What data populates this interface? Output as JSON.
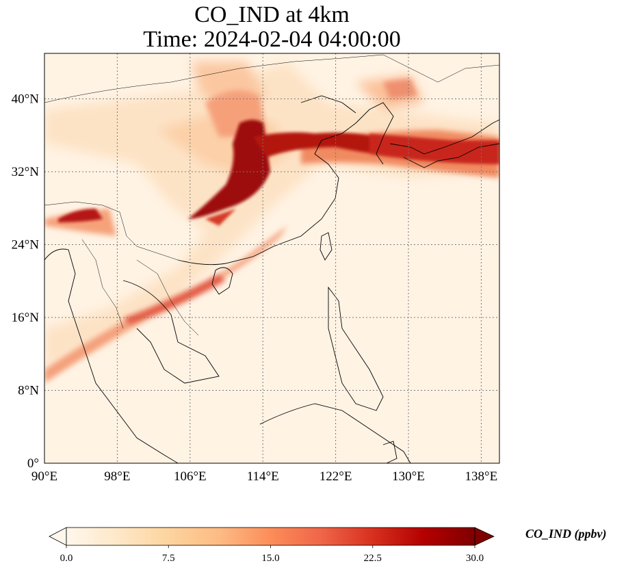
{
  "title": {
    "line1": "CO_IND at 4km",
    "line2": "Time: 2024-02-04 04:00:00"
  },
  "map": {
    "lon_range": [
      90,
      140
    ],
    "lat_range": [
      0,
      45
    ],
    "lon_ticks": [
      {
        "value": 90,
        "label": "90°E"
      },
      {
        "value": 98,
        "label": "98°E"
      },
      {
        "value": 106,
        "label": "106°E"
      },
      {
        "value": 114,
        "label": "114°E"
      },
      {
        "value": 122,
        "label": "122°E"
      },
      {
        "value": 130,
        "label": "130°E"
      },
      {
        "value": 138,
        "label": "138°E"
      }
    ],
    "lat_ticks": [
      {
        "value": 0,
        "label": "0°"
      },
      {
        "value": 8,
        "label": "8°N"
      },
      {
        "value": 16,
        "label": "16°N"
      },
      {
        "value": 24,
        "label": "24°N"
      },
      {
        "value": 32,
        "label": "32°N"
      },
      {
        "value": 40,
        "label": "40°N"
      }
    ],
    "gridlines": true,
    "variable": "CO_IND",
    "units": "ppbv"
  },
  "colorbar": {
    "label": "CO_IND (ppbv)",
    "min": 0,
    "max": 30,
    "ticks": [
      "0.0",
      "7.5",
      "15.0",
      "22.5",
      "30.0"
    ],
    "extend": "both",
    "colormap": "OrRd",
    "colors": [
      "#fff7ec",
      "#fee8c8",
      "#fdd49e",
      "#fdbb84",
      "#fc8d59",
      "#ef6548",
      "#d7301f",
      "#b30000",
      "#7f0000"
    ]
  }
}
